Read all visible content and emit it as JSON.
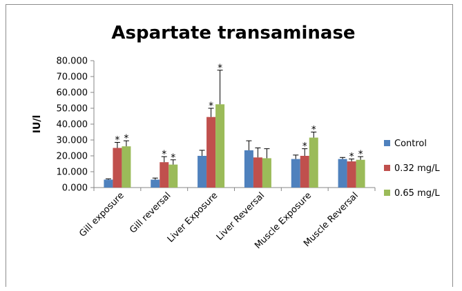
{
  "chart_data": {
    "type": "bar",
    "title": "Aspartate transaminase",
    "xlabel": "",
    "ylabel": "IU/l",
    "ylim": [
      0,
      80
    ],
    "yticks": [
      "0.000",
      "10.000",
      "20.000",
      "30.000",
      "40.000",
      "50.000",
      "60.000",
      "70.000",
      "80.000"
    ],
    "grid": false,
    "legend_position": "right",
    "categories": [
      "Gill exposure",
      "Gill reversal",
      "Liver Exposure",
      "Liver Reversal",
      "Muscle Exposure",
      "Muscle Reversal"
    ],
    "series": [
      {
        "name": "Control",
        "color": "#4f81bd",
        "values": [
          5.0,
          5.0,
          20.0,
          23.5,
          18.0,
          18.0
        ],
        "errors": [
          0.5,
          1.0,
          3.5,
          6.0,
          2.5,
          1.0
        ],
        "significant": [
          false,
          false,
          false,
          false,
          false,
          false
        ]
      },
      {
        "name": "0.32 mg/L",
        "color": "#c0504d",
        "values": [
          25.0,
          16.0,
          44.5,
          19.0,
          20.0,
          16.5
        ],
        "errors": [
          3.5,
          3.5,
          5.5,
          6.0,
          4.5,
          1.5
        ],
        "significant": [
          true,
          true,
          true,
          false,
          true,
          true
        ]
      },
      {
        "name": "0.65 mg/L",
        "color": "#9bbb59",
        "values": [
          26.0,
          14.5,
          52.5,
          18.5,
          31.5,
          17.5
        ],
        "errors": [
          3.5,
          3.0,
          21.5,
          6.0,
          3.5,
          2.0
        ],
        "significant": [
          true,
          true,
          true,
          false,
          true,
          true
        ]
      }
    ],
    "significance_marker": "*"
  }
}
